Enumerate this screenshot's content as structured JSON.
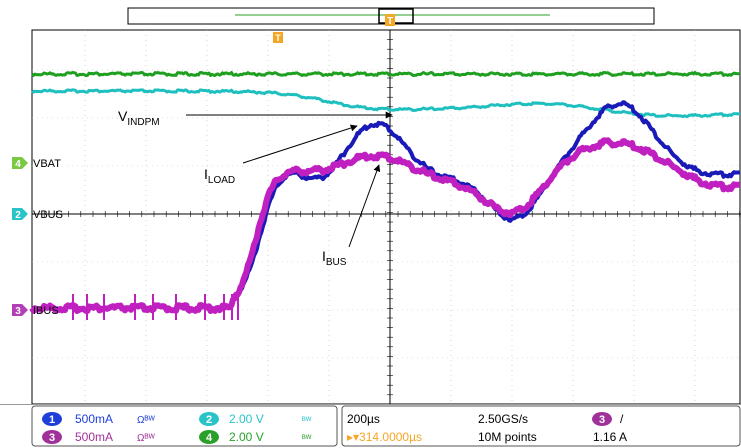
{
  "chart_data": {
    "type": "line",
    "title": "",
    "xlabel": "",
    "ylabel": "",
    "grid": true,
    "trigger_marker": "T",
    "annotations": {
      "vindpm": "V",
      "vindpm_sub": "INDPM",
      "iload": "I",
      "iload_sub": "LOAD",
      "ibus": "I",
      "ibus_sub": "BUS"
    },
    "channel_markers": [
      {
        "num": "4",
        "label": "VBAT",
        "color": "#7ac943"
      },
      {
        "num": "2",
        "label": "VBUS",
        "color": "#29c4c8"
      },
      {
        "num": "3",
        "label": "IBUS",
        "color": "#b23fb5"
      }
    ],
    "series": [
      {
        "color": "#1f9f1f"
      },
      {
        "color": "#1fbfbf"
      },
      {
        "color": "#1a1ab8"
      },
      {
        "color": "#c020c0"
      }
    ]
  },
  "status": {
    "ch1": {
      "num": "1",
      "scale": "500mA",
      "suffix": "Ωᴮᵂ",
      "color": "#1e3fd8"
    },
    "ch2": {
      "num": "2",
      "scale": "2.00 V",
      "suffix": "ᴮᵂ",
      "color": "#29c4c8"
    },
    "ch3": {
      "num": "3",
      "scale": "500mA",
      "suffix": "Ωᴮᵂ",
      "color": "#a0309a"
    },
    "ch4": {
      "num": "4",
      "scale": "2.00 V",
      "suffix": "ᴮᵂ",
      "color": "#2aa02a"
    },
    "timebase": "200µs",
    "trigger_pos": "▸▾314.0000µs",
    "sample_rate": "2.50GS/s",
    "record": "10M points",
    "trigger_ch": "3",
    "trigger_slope": "/",
    "trigger_level": "1.16 A"
  }
}
